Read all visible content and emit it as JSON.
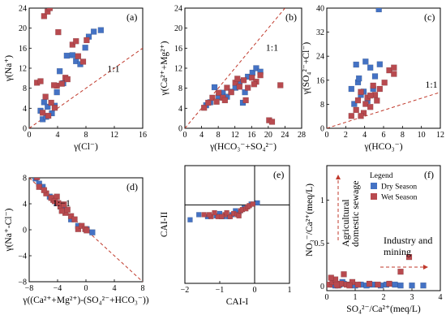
{
  "colors": {
    "dry": "#4472c4",
    "wet": "#b84a4f",
    "line": "#c0392b",
    "axis": "#000000"
  },
  "legend": {
    "title": "Legend",
    "dry": "Dry Season",
    "wet": "Wet Season"
  },
  "chart_data": [
    {
      "id": "a",
      "type": "scatter",
      "label": "(a)",
      "xlabel": "γ(Cl⁻)",
      "ylabel": "γ(Na⁺)",
      "xlim": [
        0,
        16
      ],
      "ylim": [
        0,
        24
      ],
      "xticks": [
        0,
        4,
        8,
        12,
        16
      ],
      "yticks": [
        0,
        4,
        8,
        12,
        16,
        20,
        24
      ],
      "ref_line": {
        "label": "1:1",
        "points": [
          [
            0,
            0
          ],
          [
            16,
            16
          ]
        ],
        "label_at": [
          11,
          11.3
        ]
      },
      "series": [
        {
          "name": "Dry Season",
          "points": [
            [
              1.6,
              3.5
            ],
            [
              2.1,
              5.2
            ],
            [
              2.6,
              4.3
            ],
            [
              3.2,
              3
            ],
            [
              3.6,
              4.5
            ],
            [
              3.9,
              7.2
            ],
            [
              4.3,
              11.4
            ],
            [
              4.8,
              9
            ],
            [
              5.3,
              14.5
            ],
            [
              6.1,
              14.6
            ],
            [
              6.6,
              13.4
            ],
            [
              7.2,
              12.8
            ],
            [
              7.9,
              16.1
            ],
            [
              8.4,
              18.3
            ],
            [
              9.1,
              19.3
            ],
            [
              10.1,
              19.6
            ],
            [
              1.9,
              1.8
            ],
            [
              2.4,
              2.3
            ]
          ]
        },
        {
          "name": "Wet Season",
          "points": [
            [
              1.1,
              9.1
            ],
            [
              1.6,
              9.4
            ],
            [
              2.1,
              22.4
            ],
            [
              2.6,
              23.3
            ],
            [
              2.9,
              24
            ],
            [
              3.1,
              5.1
            ],
            [
              3.6,
              4.1
            ],
            [
              3.9,
              8.5
            ],
            [
              4.1,
              19.2
            ],
            [
              4.6,
              8.9
            ],
            [
              5.1,
              10.1
            ],
            [
              5.4,
              9.8
            ],
            [
              6.1,
              16.7
            ],
            [
              6.6,
              17.4
            ],
            [
              6.9,
              14.4
            ],
            [
              7.6,
              13.3
            ],
            [
              8.1,
              17.6
            ],
            [
              1.9,
              3.1
            ],
            [
              2.3,
              6.3
            ],
            [
              2.7,
              2.5
            ],
            [
              3.5,
              8.6
            ]
          ]
        }
      ]
    },
    {
      "id": "b",
      "type": "scatter",
      "label": "(b)",
      "xlabel": "γ(HCO₃⁻+SO₄²⁻)",
      "ylabel": "γ(Ca²⁺+Mg²⁺)",
      "xlim": [
        0,
        28
      ],
      "ylim": [
        0,
        24
      ],
      "xticks": [
        0,
        4,
        8,
        12,
        16,
        20,
        24,
        28
      ],
      "yticks": [
        0,
        4,
        8,
        12,
        16,
        20,
        24
      ],
      "ref_line": {
        "label": "1:1",
        "points": [
          [
            0,
            0
          ],
          [
            24,
            24
          ]
        ],
        "label_at": [
          19.4,
          15.5
        ]
      },
      "series": [
        {
          "name": "Dry Season",
          "points": [
            [
              5.1,
              4.6
            ],
            [
              6.1,
              5.2
            ],
            [
              7.1,
              8.2
            ],
            [
              8.1,
              6.2
            ],
            [
              9.1,
              7.1
            ],
            [
              10.1,
              6.3
            ],
            [
              11.1,
              7.3
            ],
            [
              12.1,
              8.1
            ],
            [
              13.1,
              9.3
            ],
            [
              13.9,
              5.1
            ],
            [
              15.1,
              10.3
            ],
            [
              16.2,
              11.1
            ],
            [
              17.1,
              12
            ],
            [
              18.1,
              11.3
            ],
            [
              14.4,
              7.2
            ]
          ]
        },
        {
          "name": "Wet Season",
          "points": [
            [
              4.6,
              4.1
            ],
            [
              5.6,
              5.1
            ],
            [
              6.6,
              6.1
            ],
            [
              7.6,
              5.3
            ],
            [
              8.1,
              7.1
            ],
            [
              9.1,
              6.1
            ],
            [
              10.1,
              8.1
            ],
            [
              11.1,
              7.2
            ],
            [
              12.1,
              9.1
            ],
            [
              13.1,
              8.3
            ],
            [
              14.1,
              9.6
            ],
            [
              15.1,
              8.1
            ],
            [
              16.1,
              10.1
            ],
            [
              17.1,
              9.3
            ],
            [
              18.1,
              10.6
            ],
            [
              20.2,
              1.6
            ],
            [
              20.9,
              1.3
            ],
            [
              22.9,
              8.6
            ],
            [
              9.6,
              5.6
            ],
            [
              12.6,
              9.9
            ],
            [
              14.6,
              5.6
            ],
            [
              16.6,
              8.8
            ]
          ]
        }
      ]
    },
    {
      "id": "c",
      "type": "scatter",
      "label": "(c)",
      "xlabel": "γ(HCO₃⁻)",
      "ylabel": "γ(SO₄²⁻+Cl⁻)",
      "xlim": [
        0,
        12
      ],
      "ylim": [
        0,
        40
      ],
      "xticks": [
        0,
        2,
        4,
        6,
        8,
        10,
        12
      ],
      "yticks": [
        0,
        8,
        16,
        24,
        32,
        40
      ],
      "ref_line": {
        "label": "1:1",
        "points": [
          [
            0,
            0
          ],
          [
            12,
            12
          ]
        ],
        "label_at": [
          10.4,
          13.5
        ]
      },
      "series": [
        {
          "name": "Dry Season",
          "points": [
            [
              2.6,
              13.1
            ],
            [
              3.1,
              21.2
            ],
            [
              3.3,
              15.3
            ],
            [
              3.6,
              11.1
            ],
            [
              3.9,
              12.2
            ],
            [
              4.1,
              22.2
            ],
            [
              4.3,
              9.1
            ],
            [
              4.6,
              20.2
            ],
            [
              4.9,
              13.1
            ],
            [
              5.1,
              17.3
            ],
            [
              5.6,
              21.3
            ],
            [
              5.5,
              39.6
            ],
            [
              2.9,
              8.1
            ],
            [
              3.4,
              16.6
            ]
          ]
        },
        {
          "name": "Wet Season",
          "points": [
            [
              2.6,
              4.1
            ],
            [
              3.1,
              6.1
            ],
            [
              3.3,
              9.3
            ],
            [
              3.6,
              12.1
            ],
            [
              3.9,
              5.1
            ],
            [
              4.1,
              8.1
            ],
            [
              4.3,
              10.2
            ],
            [
              4.6,
              7.1
            ],
            [
              4.9,
              14.2
            ],
            [
              5.1,
              11.1
            ],
            [
              5.6,
              13.1
            ],
            [
              6.1,
              15.2
            ],
            [
              6.6,
              19.3
            ],
            [
              7.1,
              18.1
            ],
            [
              7.1,
              20.2
            ],
            [
              3.6,
              4.1
            ],
            [
              4.6,
              10.9
            ],
            [
              5.3,
              9.2
            ]
          ]
        }
      ]
    },
    {
      "id": "d",
      "type": "scatter",
      "label": "(d)",
      "xlabel": "γ((Ca²⁺+Mg²⁺)-(SO₄²⁻+HCO₃⁻))",
      "ylabel": "γ(Na⁺-Cl⁻)",
      "xlim": [
        -8,
        8
      ],
      "ylim": [
        -8,
        8
      ],
      "xticks": [
        -8,
        -4,
        0,
        4,
        8
      ],
      "yticks": [
        -8,
        -4,
        0,
        4,
        8
      ],
      "ref_line": {
        "label": "1:−1",
        "points": [
          [
            -8,
            8
          ],
          [
            8,
            -8
          ]
        ],
        "label_at": [
          -4.7,
          3.6
        ]
      },
      "series": [
        {
          "name": "Dry Season",
          "points": [
            [
              -7.6,
              8.5
            ],
            [
              -7.1,
              7.9
            ],
            [
              -6.1,
              6.6
            ],
            [
              -5.1,
              5.1
            ],
            [
              -4.1,
              4.1
            ],
            [
              -3.1,
              3.1
            ],
            [
              -2.1,
              1.6
            ],
            [
              -1.1,
              0.6
            ],
            [
              0.1,
              0.1
            ],
            [
              0.9,
              -0.4
            ],
            [
              -6.6,
              7.1
            ],
            [
              -3.6,
              3.6
            ]
          ]
        },
        {
          "name": "Wet Season",
          "points": [
            [
              -6.9,
              8.1
            ],
            [
              -6.6,
              6.6
            ],
            [
              -5.6,
              5.6
            ],
            [
              -4.6,
              4.6
            ],
            [
              -4.1,
              5.1
            ],
            [
              -3.6,
              3.6
            ],
            [
              -2.9,
              2.6
            ],
            [
              -2.6,
              3.1
            ],
            [
              -2.1,
              2.1
            ],
            [
              -1.6,
              1.6
            ],
            [
              -1.1,
              0.1
            ],
            [
              -0.6,
              0.6
            ],
            [
              -0.1,
              0.1
            ],
            [
              0.1,
              -0.1
            ],
            [
              -4.9,
              4.9
            ],
            [
              -3.9,
              4.1
            ],
            [
              -3.1,
              3.9
            ],
            [
              -5.9,
              6.1
            ],
            [
              -4.4,
              4.4
            ],
            [
              -3.4,
              2.9
            ]
          ]
        }
      ]
    },
    {
      "id": "e",
      "type": "scatter",
      "label": "(e)",
      "xlabel": "CAI-I",
      "ylabel": "CAI-II",
      "xlim": [
        -2,
        1
      ],
      "ylim": [
        -2,
        1
      ],
      "xticks": [
        -2,
        -1,
        0,
        1
      ],
      "yticks": [],
      "zero_lines": true,
      "series": [
        {
          "name": "Dry Season",
          "points": [
            [
              -1.6,
              -0.25
            ],
            [
              -1.35,
              -0.3
            ],
            [
              -1.1,
              -0.28
            ],
            [
              -0.9,
              -0.3
            ],
            [
              -0.65,
              -0.25
            ],
            [
              -0.45,
              -0.2
            ],
            [
              -0.3,
              -0.08
            ],
            [
              -0.1,
              0.02
            ],
            [
              0.08,
              0.05
            ],
            [
              -1.85,
              -0.38
            ],
            [
              -1.0,
              -0.22
            ],
            [
              -0.75,
              -0.3
            ],
            [
              -0.55,
              -0.15
            ]
          ]
        },
        {
          "name": "Wet Season",
          "points": [
            [
              -1.45,
              -0.25
            ],
            [
              -1.25,
              -0.3
            ],
            [
              -1.05,
              -0.3
            ],
            [
              -0.85,
              -0.25
            ],
            [
              -0.7,
              -0.3
            ],
            [
              -0.6,
              -0.22
            ],
            [
              -0.5,
              -0.25
            ],
            [
              -0.4,
              -0.15
            ],
            [
              -0.35,
              -0.12
            ],
            [
              -0.25,
              -0.1
            ],
            [
              -0.2,
              -0.05
            ],
            [
              -0.15,
              -0.02
            ],
            [
              -0.05,
              0.02
            ],
            [
              -0.95,
              -0.3
            ],
            [
              -1.15,
              -0.2
            ],
            [
              -0.8,
              -0.2
            ],
            [
              -1.3,
              -0.25
            ],
            [
              -0.45,
              -0.28
            ]
          ]
        }
      ]
    },
    {
      "id": "f",
      "type": "scatter",
      "label": "(f)",
      "xlabel": "SO₄²⁻/Ca²⁺(meq/L)",
      "ylabel": "NO₃⁻/Ca²⁺(meq/L)",
      "xlim": [
        0,
        4
      ],
      "ylim": [
        -0.05,
        1.4
      ],
      "xticks": [
        0,
        1,
        2,
        3,
        4
      ],
      "yticks": [
        0.0,
        0.5,
        1.0
      ],
      "annotations": [
        "Agricultural",
        "domestic sewage",
        "Industry and",
        "mining"
      ],
      "series": [
        {
          "name": "Dry Season",
          "points": [
            [
              0.2,
              0.02
            ],
            [
              0.3,
              0.01
            ],
            [
              0.45,
              0.02
            ],
            [
              0.6,
              0.03
            ],
            [
              0.8,
              0.02
            ],
            [
              1.0,
              0.01
            ],
            [
              1.2,
              0.02
            ],
            [
              1.4,
              0.01
            ],
            [
              1.6,
              0.02
            ],
            [
              1.9,
              0.01
            ],
            [
              2.1,
              0.02
            ],
            [
              2.4,
              0.02
            ],
            [
              2.6,
              0.01
            ],
            [
              3.0,
              0.01
            ],
            [
              3.4,
              0.01
            ],
            [
              0.55,
              0.05
            ]
          ]
        },
        {
          "name": "Wet Season",
          "points": [
            [
              0.1,
              0.02
            ],
            [
              0.2,
              0.05
            ],
            [
              0.3,
              0.08
            ],
            [
              0.4,
              0.01
            ],
            [
              0.5,
              0.03
            ],
            [
              0.6,
              0.14
            ],
            [
              0.7,
              0.02
            ],
            [
              0.9,
              0.05
            ],
            [
              1.1,
              0.02
            ],
            [
              1.5,
              0.03
            ],
            [
              1.8,
              0.02
            ],
            [
              2.2,
              0.03
            ],
            [
              2.6,
              0.17
            ],
            [
              2.9,
              0.34
            ],
            [
              0.35,
              0.02
            ],
            [
              0.15,
              0.1
            ],
            [
              0.8,
              0.01
            ]
          ]
        }
      ]
    }
  ]
}
